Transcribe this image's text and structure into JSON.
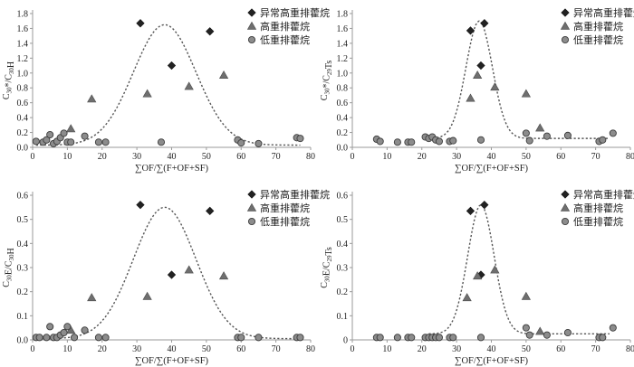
{
  "colors": {
    "marker": "#6f6f6f",
    "marker_stroke": "#4a4a4a",
    "axis": "#9a9a9a",
    "curve": "#555555"
  },
  "chart_data": [
    {
      "type": "scatter",
      "id": "top-left",
      "xlabel": "∑OF/∑(F+OF+SF)",
      "ylabel_main": "C",
      "ylabel_sub1": "30",
      "ylabel_mid": "*/C",
      "ylabel_sub2": "30",
      "ylabel_end": "H",
      "xlim": [
        0,
        80
      ],
      "xticks": [
        0,
        10,
        20,
        30,
        40,
        50,
        60,
        70,
        80
      ],
      "ylim": [
        0,
        1.8
      ],
      "yticks": [
        0,
        0.2,
        0.4,
        0.6,
        0.8,
        1.0,
        1.2,
        1.4,
        1.6,
        1.8
      ],
      "ytick_labels": [
        "0.0",
        "0.2",
        "0.4",
        "0.6",
        "0.8",
        "1.0",
        "1.2",
        "1.4",
        "1.6",
        "1.8"
      ],
      "fit_curve": {
        "peak_x": 38,
        "peak_y": 1.65,
        "sigma": 9.0,
        "baseline": 0.03,
        "x_from": 1,
        "x_to": 77
      },
      "series": [
        {
          "name": "异常高重排藿烷",
          "marker": "diamond",
          "x": [
            31,
            40,
            51
          ],
          "y": [
            1.67,
            1.1,
            1.56
          ]
        },
        {
          "name": "高重排藿烷",
          "marker": "triangle",
          "x": [
            11,
            17,
            33,
            45,
            55
          ],
          "y": [
            0.25,
            0.65,
            0.72,
            0.82,
            0.97
          ]
        },
        {
          "name": "低重排藿烷",
          "marker": "circle",
          "x": [
            1,
            3,
            4,
            5,
            6,
            7,
            8,
            9,
            10,
            11,
            15,
            19,
            21,
            37,
            59,
            60,
            65,
            76,
            77
          ],
          "y": [
            0.08,
            0.07,
            0.1,
            0.17,
            0.05,
            0.08,
            0.13,
            0.19,
            0.07,
            0.07,
            0.15,
            0.07,
            0.07,
            0.07,
            0.1,
            0.06,
            0.05,
            0.13,
            0.12
          ]
        }
      ]
    },
    {
      "type": "scatter",
      "id": "top-right",
      "xlabel": "∑OF/∑(F+OF+SF)",
      "ylabel_main": "C",
      "ylabel_sub1": "30",
      "ylabel_mid": "*/C",
      "ylabel_sub2": "29",
      "ylabel_end": "Ts",
      "xlim": [
        0,
        80
      ],
      "xticks": [
        0,
        10,
        20,
        30,
        40,
        50,
        60,
        70,
        80
      ],
      "ylim": [
        0,
        1.8
      ],
      "yticks": [
        0,
        0.2,
        0.4,
        0.6,
        0.8,
        1.0,
        1.2,
        1.4,
        1.6,
        1.8
      ],
      "ytick_labels": [
        "0.0",
        "0.2",
        "0.4",
        "0.6",
        "0.8",
        "1.0",
        "1.2",
        "1.4",
        "1.6",
        "1.8"
      ],
      "fit_curve": {
        "peak_x": 36.5,
        "peak_y": 1.7,
        "sigma": 3.8,
        "baseline": 0.12,
        "x_from": 22,
        "x_to": 74
      },
      "series": [
        {
          "name": "异常高重排藿烷",
          "marker": "diamond",
          "x": [
            34,
            37,
            38
          ],
          "y": [
            1.57,
            1.1,
            1.67
          ]
        },
        {
          "name": "高重排藿烷",
          "marker": "triangle",
          "x": [
            34,
            36,
            41,
            50,
            54
          ],
          "y": [
            0.66,
            0.97,
            0.81,
            0.72,
            0.26
          ]
        },
        {
          "name": "低重排藿烷",
          "marker": "circle",
          "x": [
            7,
            8,
            13,
            16,
            17,
            21,
            22,
            23,
            24,
            25,
            28,
            29,
            37,
            50,
            51,
            56,
            62,
            71,
            72,
            75
          ],
          "y": [
            0.11,
            0.08,
            0.07,
            0.07,
            0.07,
            0.14,
            0.12,
            0.14,
            0.1,
            0.08,
            0.08,
            0.09,
            0.1,
            0.19,
            0.09,
            0.15,
            0.16,
            0.08,
            0.1,
            0.19
          ]
        }
      ]
    },
    {
      "type": "scatter",
      "id": "bottom-left",
      "xlabel": "∑OF/∑(F+OF+SF)",
      "ylabel_main": "C",
      "ylabel_sub1": "30",
      "ylabel_mid": "E/C",
      "ylabel_sub2": "30",
      "ylabel_end": "H",
      "xlim": [
        0,
        80
      ],
      "xticks": [
        0,
        10,
        20,
        30,
        40,
        50,
        60,
        70,
        80
      ],
      "ylim": [
        0,
        0.6
      ],
      "yticks": [
        0,
        0.1,
        0.2,
        0.3,
        0.4,
        0.5,
        0.6
      ],
      "ytick_labels": [
        "0.0",
        "0.1",
        "0.2",
        "0.3",
        "0.4",
        "0.5",
        "0.6"
      ],
      "fit_curve": {
        "peak_x": 38,
        "peak_y": 0.55,
        "sigma": 9.0,
        "baseline": 0.005,
        "x_from": 1,
        "x_to": 77
      },
      "series": [
        {
          "name": "异常高重排藿烷",
          "marker": "diamond",
          "x": [
            31,
            40,
            51
          ],
          "y": [
            0.56,
            0.27,
            0.535
          ]
        },
        {
          "name": "高重排藿烷",
          "marker": "triangle",
          "x": [
            11,
            17,
            33,
            45,
            55
          ],
          "y": [
            0.04,
            0.175,
            0.18,
            0.29,
            0.265
          ]
        },
        {
          "name": "低重排藿烷",
          "marker": "circle",
          "x": [
            1,
            2,
            4,
            5,
            6,
            7,
            8,
            9,
            10,
            12,
            15,
            19,
            21,
            59,
            60,
            65,
            76,
            77
          ],
          "y": [
            0.01,
            0.01,
            0.01,
            0.055,
            0.01,
            0.01,
            0.02,
            0.03,
            0.055,
            0.01,
            0.04,
            0.01,
            0.01,
            0.01,
            0.01,
            0.01,
            0.01,
            0.01
          ]
        }
      ]
    },
    {
      "type": "scatter",
      "id": "bottom-right",
      "xlabel": "∑OF/∑(F+OF+SF)",
      "ylabel_main": "C",
      "ylabel_sub1": "30",
      "ylabel_mid": "E/C",
      "ylabel_sub2": "29",
      "ylabel_end": "Ts",
      "xlim": [
        0,
        80
      ],
      "xticks": [
        0,
        10,
        20,
        30,
        40,
        50,
        60,
        70,
        80
      ],
      "ylim": [
        0,
        0.6
      ],
      "yticks": [
        0,
        0.1,
        0.2,
        0.3,
        0.4,
        0.5,
        0.6
      ],
      "ytick_labels": [
        "0",
        "0.1",
        "0.2",
        "0.3",
        "0.4",
        "0.5",
        "0.6"
      ],
      "fit_curve": {
        "peak_x": 37,
        "peak_y": 0.56,
        "sigma": 3.8,
        "baseline": 0.025,
        "x_from": 22,
        "x_to": 74
      },
      "series": [
        {
          "name": "异常高重排藿烷",
          "marker": "diamond",
          "x": [
            34,
            37,
            38
          ],
          "y": [
            0.535,
            0.27,
            0.56
          ]
        },
        {
          "name": "高重排藿烷",
          "marker": "triangle",
          "x": [
            33,
            36,
            41,
            50,
            54
          ],
          "y": [
            0.175,
            0.265,
            0.29,
            0.18,
            0.035
          ]
        },
        {
          "name": "低重排藿烷",
          "marker": "circle",
          "x": [
            7,
            8,
            13,
            16,
            17,
            21,
            22,
            23,
            24,
            25,
            28,
            29,
            37,
            50,
            51,
            56,
            62,
            71,
            72,
            75
          ],
          "y": [
            0.01,
            0.01,
            0.01,
            0.01,
            0.01,
            0.01,
            0.01,
            0.01,
            0.01,
            0.01,
            0.01,
            0.01,
            0.01,
            0.05,
            0.02,
            0.02,
            0.03,
            0.01,
            0.01,
            0.05
          ]
        }
      ]
    }
  ]
}
